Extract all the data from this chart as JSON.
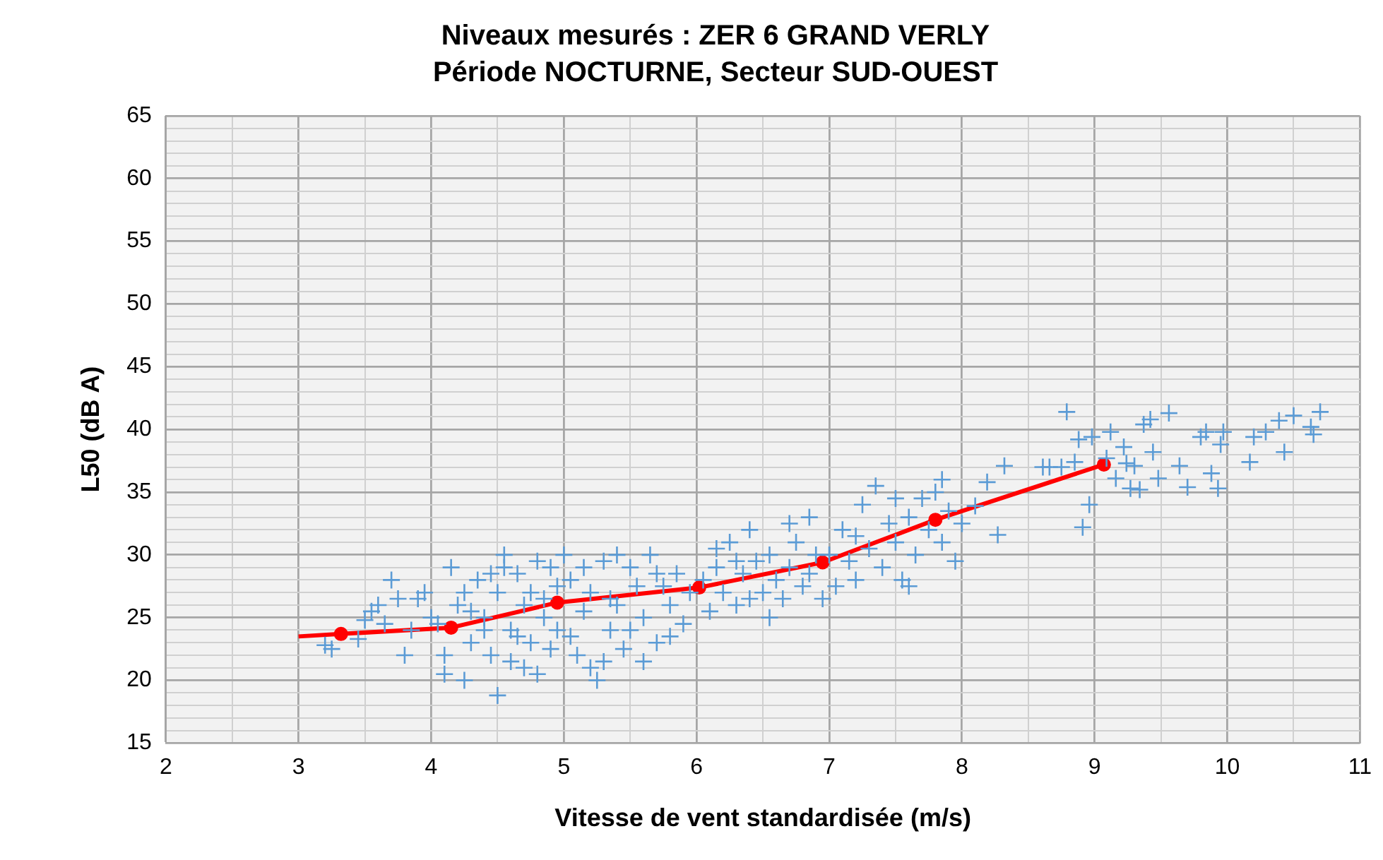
{
  "chart_data": {
    "type": "scatter",
    "title": "Niveaux mesurés : ZER 6 GRAND VERLY",
    "subtitle": "Période NOCTURNE, Secteur SUD-OUEST",
    "xlabel": "Vitesse de vent standardisée (m/s)",
    "ylabel": "L50 (dB A)",
    "xlim": [
      2,
      11
    ],
    "ylim": [
      15,
      65
    ],
    "xticks": [
      2,
      {
        "value": 2.5,
        "label": null
      },
      3,
      {
        "value": 3.5,
        "label": null
      },
      4,
      {
        "value": 4.5,
        "label": null
      },
      5,
      {
        "value": 5.5,
        "label": null
      },
      6,
      {
        "value": 6.5,
        "label": null
      },
      7,
      {
        "value": 7.5,
        "label": null
      },
      8,
      {
        "value": 8.5,
        "label": null
      },
      9,
      {
        "value": 9.5,
        "label": null
      },
      10,
      {
        "value": 10.5,
        "label": null
      },
      11
    ],
    "yticks": [
      15,
      {
        "value": 16,
        "label": null
      },
      {
        "value": 17,
        "label": null
      },
      {
        "value": 18,
        "label": null
      },
      {
        "value": 19,
        "label": null
      },
      20,
      {
        "value": 21,
        "label": null
      },
      {
        "value": 22,
        "label": null
      },
      {
        "value": 23,
        "label": null
      },
      {
        "value": 24,
        "label": null
      },
      25,
      {
        "value": 26,
        "label": null
      },
      {
        "value": 27,
        "label": null
      },
      {
        "value": 28,
        "label": null
      },
      {
        "value": 29,
        "label": null
      },
      30,
      {
        "value": 31,
        "label": null
      },
      {
        "value": 32,
        "label": null
      },
      {
        "value": 33,
        "label": null
      },
      {
        "value": 34,
        "label": null
      },
      35,
      {
        "value": 36,
        "label": null
      },
      {
        "value": 37,
        "label": null
      },
      {
        "value": 38,
        "label": null
      },
      {
        "value": 39,
        "label": null
      },
      40,
      {
        "value": 41,
        "label": null
      },
      {
        "value": 42,
        "label": null
      },
      {
        "value": 43,
        "label": null
      },
      {
        "value": 44,
        "label": null
      },
      45,
      {
        "value": 46,
        "label": null
      },
      {
        "value": 47,
        "label": null
      },
      {
        "value": 48,
        "label": null
      },
      {
        "value": 49,
        "label": null
      },
      50,
      {
        "value": 51,
        "label": null
      },
      {
        "value": 52,
        "label": null
      },
      {
        "value": 53,
        "label": null
      },
      {
        "value": 54,
        "label": null
      },
      55,
      {
        "value": 56,
        "label": null
      },
      {
        "value": 57,
        "label": null
      },
      {
        "value": 58,
        "label": null
      },
      {
        "value": 59,
        "label": null
      },
      60,
      {
        "value": 61,
        "label": null
      },
      {
        "value": 62,
        "label": null
      },
      {
        "value": 63,
        "label": null
      },
      {
        "value": 64,
        "label": null
      },
      65
    ],
    "grid": true,
    "legend": false,
    "series": [
      {
        "marker": "cross",
        "color": "#5b9bd5",
        "x": [
          3.2,
          3.25,
          3.45,
          3.5,
          3.55,
          3.6,
          3.7,
          3.65,
          3.8,
          3.85,
          3.9,
          3.95,
          4.0,
          3.75,
          4.1,
          4.05,
          4.15,
          4.2,
          4.25,
          4.3,
          4.35,
          4.1,
          4.4,
          4.45,
          4.5,
          4.55,
          4.5,
          4.6,
          4.65,
          4.7,
          4.7,
          4.75,
          4.8,
          4.85,
          4.9,
          4.95,
          4.55,
          4.6,
          4.4,
          4.3,
          4.8,
          4.9,
          4.65,
          4.75,
          4.85,
          4.45,
          4.25,
          4.95,
          5.0,
          5.05,
          5.1,
          5.15,
          5.2,
          5.25,
          5.3,
          5.35,
          5.4,
          5.45,
          5.5,
          5.55,
          5.6,
          5.65,
          5.7,
          5.75,
          5.8,
          5.85,
          5.9,
          5.95,
          5.05,
          5.2,
          5.4,
          5.6,
          5.15,
          5.35,
          5.5,
          5.7,
          5.8,
          5.3,
          6.05,
          6.1,
          6.15,
          6.2,
          6.25,
          6.3,
          6.35,
          6.4,
          6.45,
          6.5,
          6.55,
          6.6,
          6.65,
          6.7,
          6.75,
          6.8,
          6.85,
          6.9,
          6.95,
          6.55,
          6.15,
          6.4,
          6.7,
          6.85,
          6.3,
          7.0,
          7.05,
          7.1,
          7.15,
          7.2,
          7.25,
          7.3,
          7.35,
          7.4,
          7.45,
          7.5,
          7.55,
          7.6,
          7.65,
          7.7,
          7.75,
          7.8,
          7.85,
          7.9,
          7.95,
          7.6,
          7.2,
          7.5,
          7.85,
          8.0,
          8.1,
          8.19,
          8.27,
          8.32,
          8.61,
          8.66,
          8.75,
          8.79,
          8.85,
          8.88,
          8.91,
          8.96,
          8.98,
          9.09,
          9.12,
          9.16,
          9.22,
          9.24,
          9.27,
          9.3,
          9.34,
          9.37,
          9.42,
          9.44,
          9.48,
          9.56,
          9.64,
          9.7,
          9.8,
          9.84,
          9.88,
          9.93,
          9.95,
          9.97,
          10.17,
          10.2,
          10.29,
          10.39,
          10.43,
          10.5,
          10.63,
          10.65,
          10.7
        ],
        "values": [
          22.8,
          22.5,
          23.3,
          24.8,
          25.5,
          26,
          28,
          24.5,
          22,
          24,
          26.5,
          27,
          25,
          26.5,
          22,
          24.5,
          29,
          26,
          20,
          23,
          28,
          20.5,
          25,
          22,
          27,
          29,
          18.8,
          24,
          28.5,
          21,
          26,
          23,
          29.5,
          25,
          22.5,
          27.5,
          30,
          21.5,
          24,
          25.5,
          20.5,
          29,
          23.5,
          27,
          26.5,
          28.5,
          27,
          24,
          30,
          28,
          22,
          25.5,
          27,
          20,
          29.5,
          24,
          26,
          22.5,
          29,
          27.5,
          25,
          30,
          23,
          27.5,
          26,
          28.5,
          24.5,
          27,
          23.5,
          21,
          30,
          21.5,
          29,
          26.5,
          24,
          28.5,
          23.5,
          21.5,
          28,
          25.5,
          29,
          27,
          31,
          26,
          28.5,
          32,
          29.5,
          27,
          30,
          28,
          26.5,
          29,
          31,
          27.5,
          33,
          30,
          26.5,
          25,
          30.5,
          26.5,
          32.5,
          28.5,
          29.5,
          30,
          27.5,
          32,
          29.5,
          31.5,
          34,
          30.5,
          35.5,
          29,
          32.5,
          31,
          28,
          33,
          30,
          34.5,
          32,
          35,
          31,
          33.5,
          29.5,
          27.5,
          28,
          34.5,
          36,
          32.5,
          33.9,
          35.8,
          31.6,
          37.1,
          37,
          37,
          37,
          41.4,
          37.4,
          39.2,
          32.2,
          34,
          39.4,
          37.7,
          39.8,
          36.1,
          38.6,
          37.3,
          35.3,
          37.1,
          35.2,
          40.4,
          40.8,
          38.2,
          36.1,
          41.3,
          37.1,
          35.4,
          39.4,
          39.8,
          36.5,
          35.3,
          38.8,
          39.8,
          37.4,
          39.4,
          39.8,
          40.7,
          38.2,
          41.1,
          40.2,
          39.6,
          41.4
        ]
      },
      {
        "type": "line",
        "marker": "none",
        "color": "#ff0000",
        "x": [
          3,
          3.32,
          4.15,
          4.95,
          6.02,
          6.95,
          7.8,
          9.07
        ],
        "values": [
          23.5,
          23.7,
          24.2,
          26.2,
          27.4,
          29.4,
          32.8,
          37.2
        ]
      },
      {
        "type": "scatter",
        "marker": "circle",
        "color": "#ff0000",
        "x": [
          3.32,
          4.15,
          4.95,
          6.02,
          6.95,
          7.8,
          9.07
        ],
        "values": [
          23.7,
          24.2,
          26.2,
          27.4,
          29.4,
          32.8,
          37.2
        ]
      }
    ]
  }
}
